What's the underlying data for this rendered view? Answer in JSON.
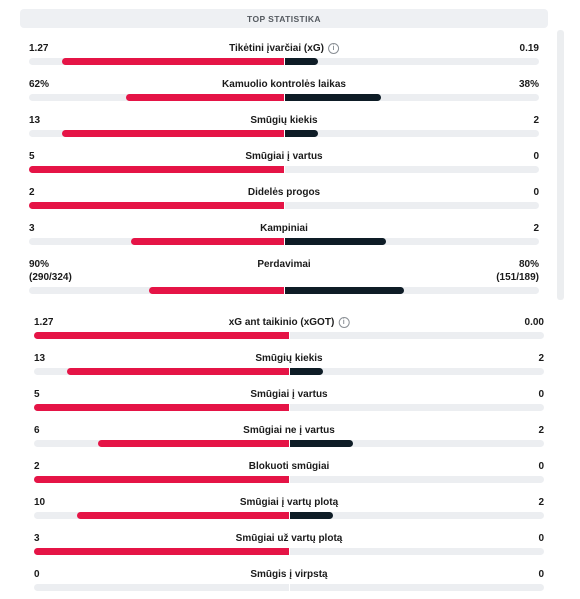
{
  "header": {
    "title": "TOP STATISTIKA"
  },
  "top_stats": [
    {
      "name": "Tikėtini įvarčiai (xG)",
      "home": "1.27",
      "away": "0.19",
      "home_share": 0.87,
      "away_share": 0.13,
      "info": true
    },
    {
      "name": "Kamuolio kontrolės laikas",
      "home": "62%",
      "away": "38%",
      "home_share": 0.62,
      "away_share": 0.38
    },
    {
      "name": "Smūgių kiekis",
      "home": "13",
      "away": "2",
      "home_share": 0.87,
      "away_share": 0.13
    },
    {
      "name": "Smūgiai į vartus",
      "home": "5",
      "away": "0",
      "home_share": 1.0,
      "away_share": 0.0
    },
    {
      "name": "Didelės progos",
      "home": "2",
      "away": "0",
      "home_share": 1.0,
      "away_share": 0.0
    },
    {
      "name": "Kampiniai",
      "home": "3",
      "away": "2",
      "home_share": 0.6,
      "away_share": 0.4
    },
    {
      "name": "Perdavimai",
      "home": "90%",
      "away": "80%",
      "home_sub": "(290/324)",
      "away_sub": "(151/189)",
      "home_share": 0.53,
      "away_share": 0.47
    }
  ],
  "shot_stats": [
    {
      "name": "xG ant taikinio (xGOT)",
      "home": "1.27",
      "away": "0.00",
      "home_share": 1.0,
      "away_share": 0.0,
      "info": true
    },
    {
      "name": "Smūgių kiekis",
      "home": "13",
      "away": "2",
      "home_share": 0.87,
      "away_share": 0.13
    },
    {
      "name": "Smūgiai į vartus",
      "home": "5",
      "away": "0",
      "home_share": 1.0,
      "away_share": 0.0
    },
    {
      "name": "Smūgiai ne į vartus",
      "home": "6",
      "away": "2",
      "home_share": 0.75,
      "away_share": 0.25
    },
    {
      "name": "Blokuoti smūgiai",
      "home": "2",
      "away": "0",
      "home_share": 1.0,
      "away_share": 0.0
    },
    {
      "name": "Smūgiai į vartų plotą",
      "home": "10",
      "away": "2",
      "home_share": 0.83,
      "away_share": 0.17
    },
    {
      "name": "Smūgiai už vartų plotą",
      "home": "3",
      "away": "0",
      "home_share": 1.0,
      "away_share": 0.0
    },
    {
      "name": "Smūgis į virpstą",
      "home": "0",
      "away": "0",
      "home_share": 0.0,
      "away_share": 0.0
    }
  ]
}
